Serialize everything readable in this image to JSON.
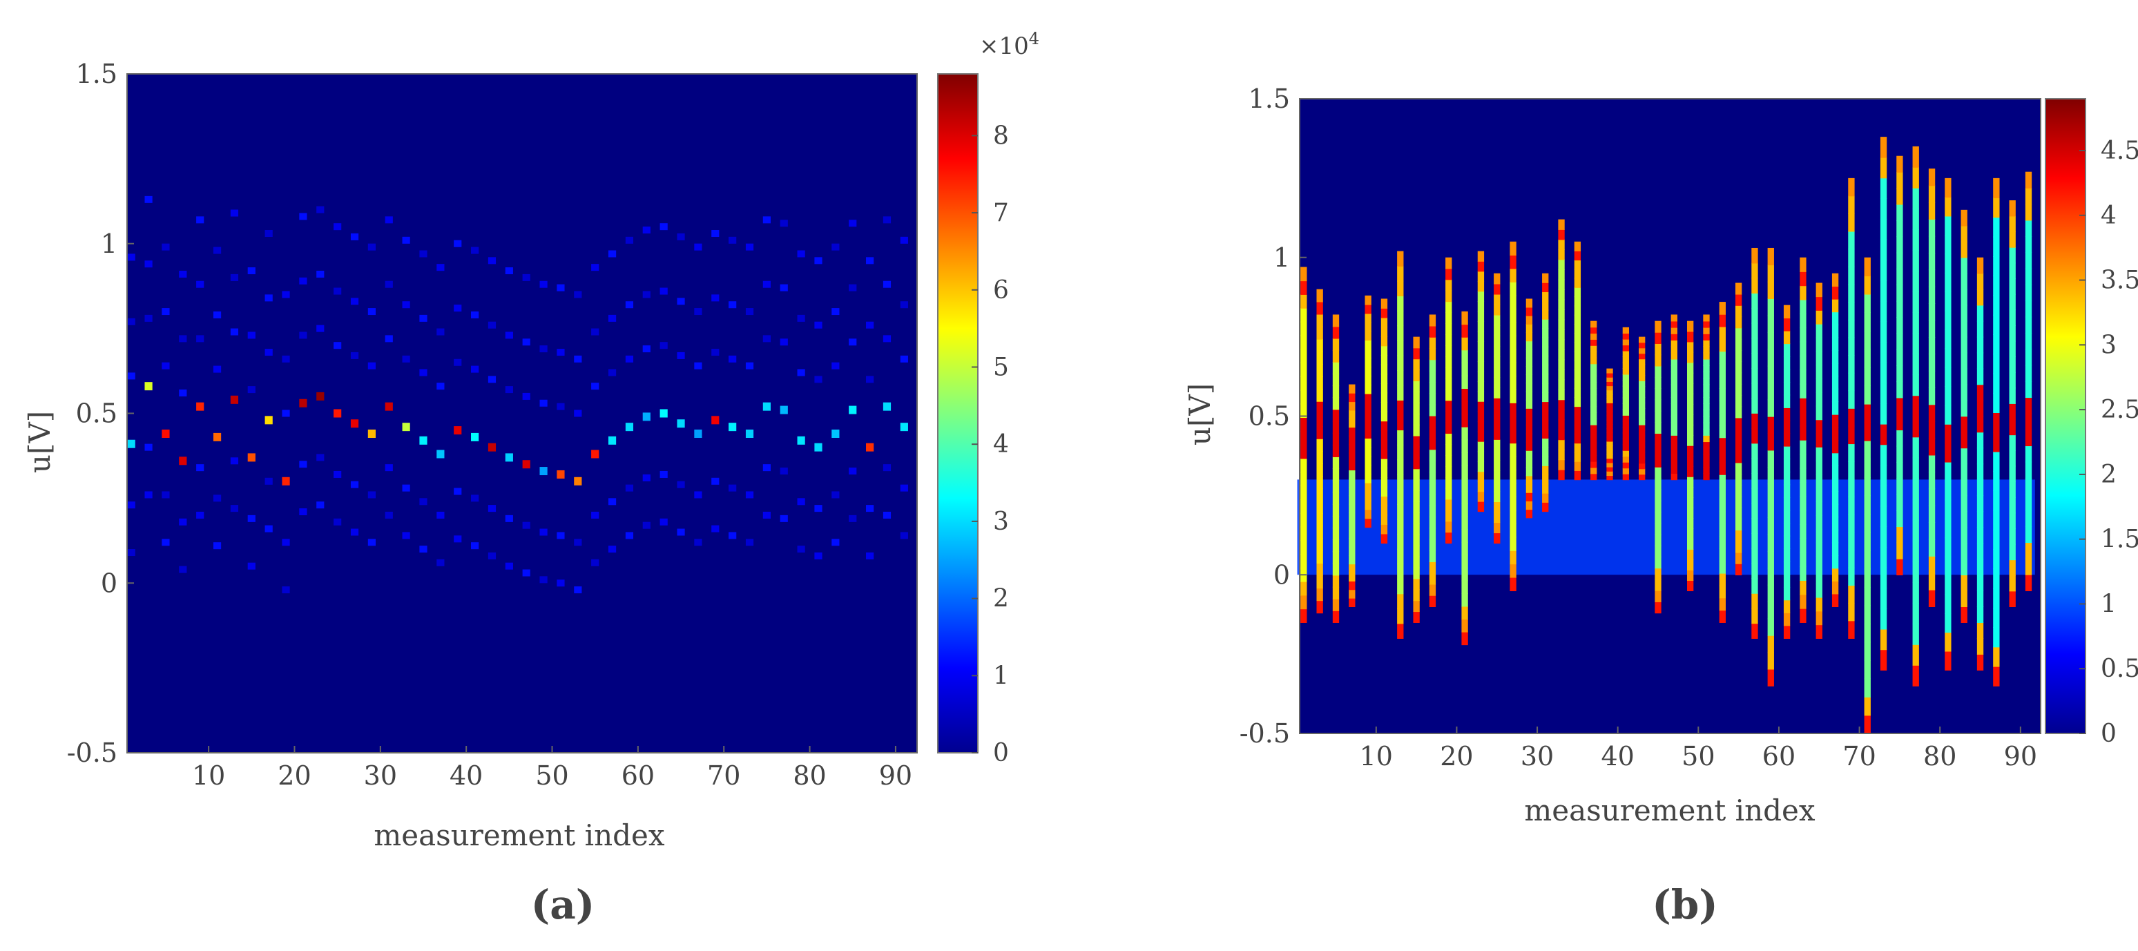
{
  "chart_data": [
    {
      "panel_label": "(a)",
      "type": "heatmap",
      "xlabel": "measurement index",
      "ylabel": "u[V]",
      "x_ticks": [
        "10",
        "20",
        "30",
        "40",
        "50",
        "60",
        "70",
        "80",
        "90"
      ],
      "y_ticks": [
        "-0.5",
        "0",
        "0.5",
        "1",
        "1.5"
      ],
      "xlim": [
        0.5,
        92.5
      ],
      "ylim": [
        -0.5,
        1.5
      ],
      "colorbar": {
        "colormap": "jet",
        "range": [
          0,
          88000
        ],
        "multiplier_label": "×10",
        "multiplier_exponent": "4",
        "tick_values": [
          0,
          1,
          2,
          3,
          4,
          5,
          6,
          7,
          8
        ],
        "tick_labels": [
          "0",
          "1",
          "2",
          "3",
          "4",
          "5",
          "6",
          "7",
          "8"
        ]
      },
      "background_value": 0,
      "peak_series": {
        "description_values_in_units_of_1e4": true,
        "x": [
          1,
          3,
          5,
          7,
          9,
          11,
          13,
          15,
          17,
          19,
          21,
          23,
          25,
          27,
          29,
          31,
          33,
          35,
          37,
          39,
          41,
          43,
          45,
          47,
          49,
          51,
          53,
          55,
          57,
          59,
          61,
          63,
          65,
          67,
          69,
          71,
          73,
          75,
          77,
          79,
          81,
          83,
          85,
          87,
          89,
          91
        ],
        "u": [
          0.41,
          0.58,
          0.44,
          0.36,
          0.52,
          0.43,
          0.54,
          0.37,
          0.48,
          0.3,
          0.53,
          0.55,
          0.5,
          0.47,
          0.44,
          0.52,
          0.46,
          0.42,
          0.38,
          0.45,
          0.43,
          0.4,
          0.37,
          0.35,
          0.33,
          0.32,
          0.3,
          0.38,
          0.42,
          0.46,
          0.49,
          0.5,
          0.47,
          0.44,
          0.48,
          0.46,
          0.44,
          0.52,
          0.51,
          0.42,
          0.4,
          0.44,
          0.51,
          0.4,
          0.52,
          0.46
        ],
        "intensity": [
          3.0,
          5.2,
          7.6,
          8.0,
          7.4,
          6.8,
          8.2,
          7.0,
          5.8,
          7.4,
          8.3,
          8.6,
          7.5,
          7.9,
          6.1,
          8.1,
          5.0,
          3.2,
          2.8,
          7.9,
          3.3,
          8.2,
          2.9,
          8.0,
          2.5,
          7.1,
          6.6,
          7.5,
          3.1,
          3.0,
          2.6,
          3.3,
          3.0,
          2.5,
          7.8,
          3.2,
          2.9,
          3.0,
          2.7,
          3.1,
          3.0,
          2.8,
          3.2,
          7.3,
          3.0,
          3.1
        ]
      }
    },
    {
      "panel_label": "(b)",
      "type": "heatmap",
      "xlabel": "measurement index",
      "ylabel": "u[V]",
      "x_ticks": [
        "10",
        "20",
        "30",
        "40",
        "50",
        "60",
        "70",
        "80",
        "90"
      ],
      "y_ticks": [
        "-0.5",
        "0",
        "0.5",
        "1",
        "1.5"
      ],
      "xlim": [
        0.5,
        92.5
      ],
      "ylim": [
        -0.5,
        1.5
      ],
      "colorbar": {
        "colormap": "jet",
        "range": [
          0,
          4.9
        ],
        "tick_values": [
          0,
          0.5,
          1,
          1.5,
          2,
          2.5,
          3,
          3.5,
          4,
          4.5
        ],
        "tick_labels": [
          "0",
          "0.5",
          "1",
          "1.5",
          "2",
          "2.5",
          "3",
          "3.5",
          "4",
          "4.5"
        ]
      },
      "background_value": 0,
      "columns": {
        "x": [
          1,
          3,
          5,
          7,
          9,
          11,
          13,
          15,
          17,
          19,
          21,
          23,
          25,
          27,
          29,
          31,
          33,
          35,
          37,
          39,
          41,
          43,
          45,
          47,
          49,
          51,
          53,
          55,
          57,
          59,
          61,
          63,
          65,
          67,
          69,
          71,
          73,
          75,
          77,
          79,
          81,
          83,
          85,
          87,
          89,
          91
        ],
        "u_min": [
          -0.15,
          -0.12,
          -0.15,
          -0.1,
          0.15,
          0.1,
          -0.2,
          -0.15,
          -0.1,
          0.1,
          -0.22,
          0.2,
          0.1,
          -0.05,
          0.18,
          0.2,
          0.3,
          0.3,
          0.3,
          0.3,
          0.3,
          0.3,
          -0.12,
          0.3,
          -0.05,
          0.3,
          -0.15,
          0.0,
          -0.2,
          -0.35,
          -0.2,
          -0.15,
          -0.2,
          -0.1,
          -0.2,
          -0.5,
          -0.3,
          0.0,
          -0.35,
          -0.1,
          -0.3,
          -0.15,
          -0.3,
          -0.35,
          -0.1,
          -0.05
        ],
        "u_max": [
          0.97,
          0.9,
          0.82,
          0.6,
          0.88,
          0.87,
          1.02,
          0.75,
          0.82,
          1.0,
          0.83,
          1.02,
          0.95,
          1.05,
          0.87,
          0.95,
          1.12,
          1.05,
          0.8,
          0.65,
          0.78,
          0.75,
          0.8,
          0.82,
          0.8,
          0.82,
          0.86,
          0.92,
          1.03,
          1.03,
          0.85,
          1.0,
          0.92,
          0.95,
          1.25,
          1.0,
          1.38,
          1.32,
          1.35,
          1.28,
          1.25,
          1.15,
          1.0,
          1.25,
          1.18,
          1.27
        ],
        "peak_u": [
          0.42,
          0.48,
          0.45,
          0.4,
          0.5,
          0.42,
          0.5,
          0.38,
          0.45,
          0.5,
          0.52,
          0.48,
          0.5,
          0.48,
          0.46,
          0.5,
          0.5,
          0.47,
          0.42,
          0.48,
          0.45,
          0.42,
          0.4,
          0.38,
          0.36,
          0.36,
          0.38,
          0.42,
          0.46,
          0.46,
          0.48,
          0.48,
          0.45,
          0.44,
          0.46,
          0.46,
          0.44,
          0.52,
          0.52,
          0.46,
          0.44,
          0.46,
          0.52,
          0.45,
          0.5,
          0.48
        ],
        "column_level": [
          3.0,
          3.2,
          2.8,
          2.6,
          3.0,
          2.9,
          2.7,
          2.8,
          2.5,
          2.9,
          2.6,
          2.7,
          2.8,
          2.9,
          2.6,
          2.5,
          2.7,
          2.8,
          2.5,
          2.4,
          2.6,
          2.5,
          2.5,
          2.4,
          2.6,
          2.3,
          2.4,
          2.6,
          2.2,
          2.4,
          2.1,
          2.3,
          2.2,
          2.0,
          2.1,
          2.4,
          2.0,
          2.2,
          2.1,
          2.3,
          2.0,
          2.2,
          2.0,
          1.9,
          2.1,
          2.0
        ],
        "filled_band_u": [
          0.0,
          0.3
        ],
        "filled_band_level": 0.9
      }
    }
  ]
}
